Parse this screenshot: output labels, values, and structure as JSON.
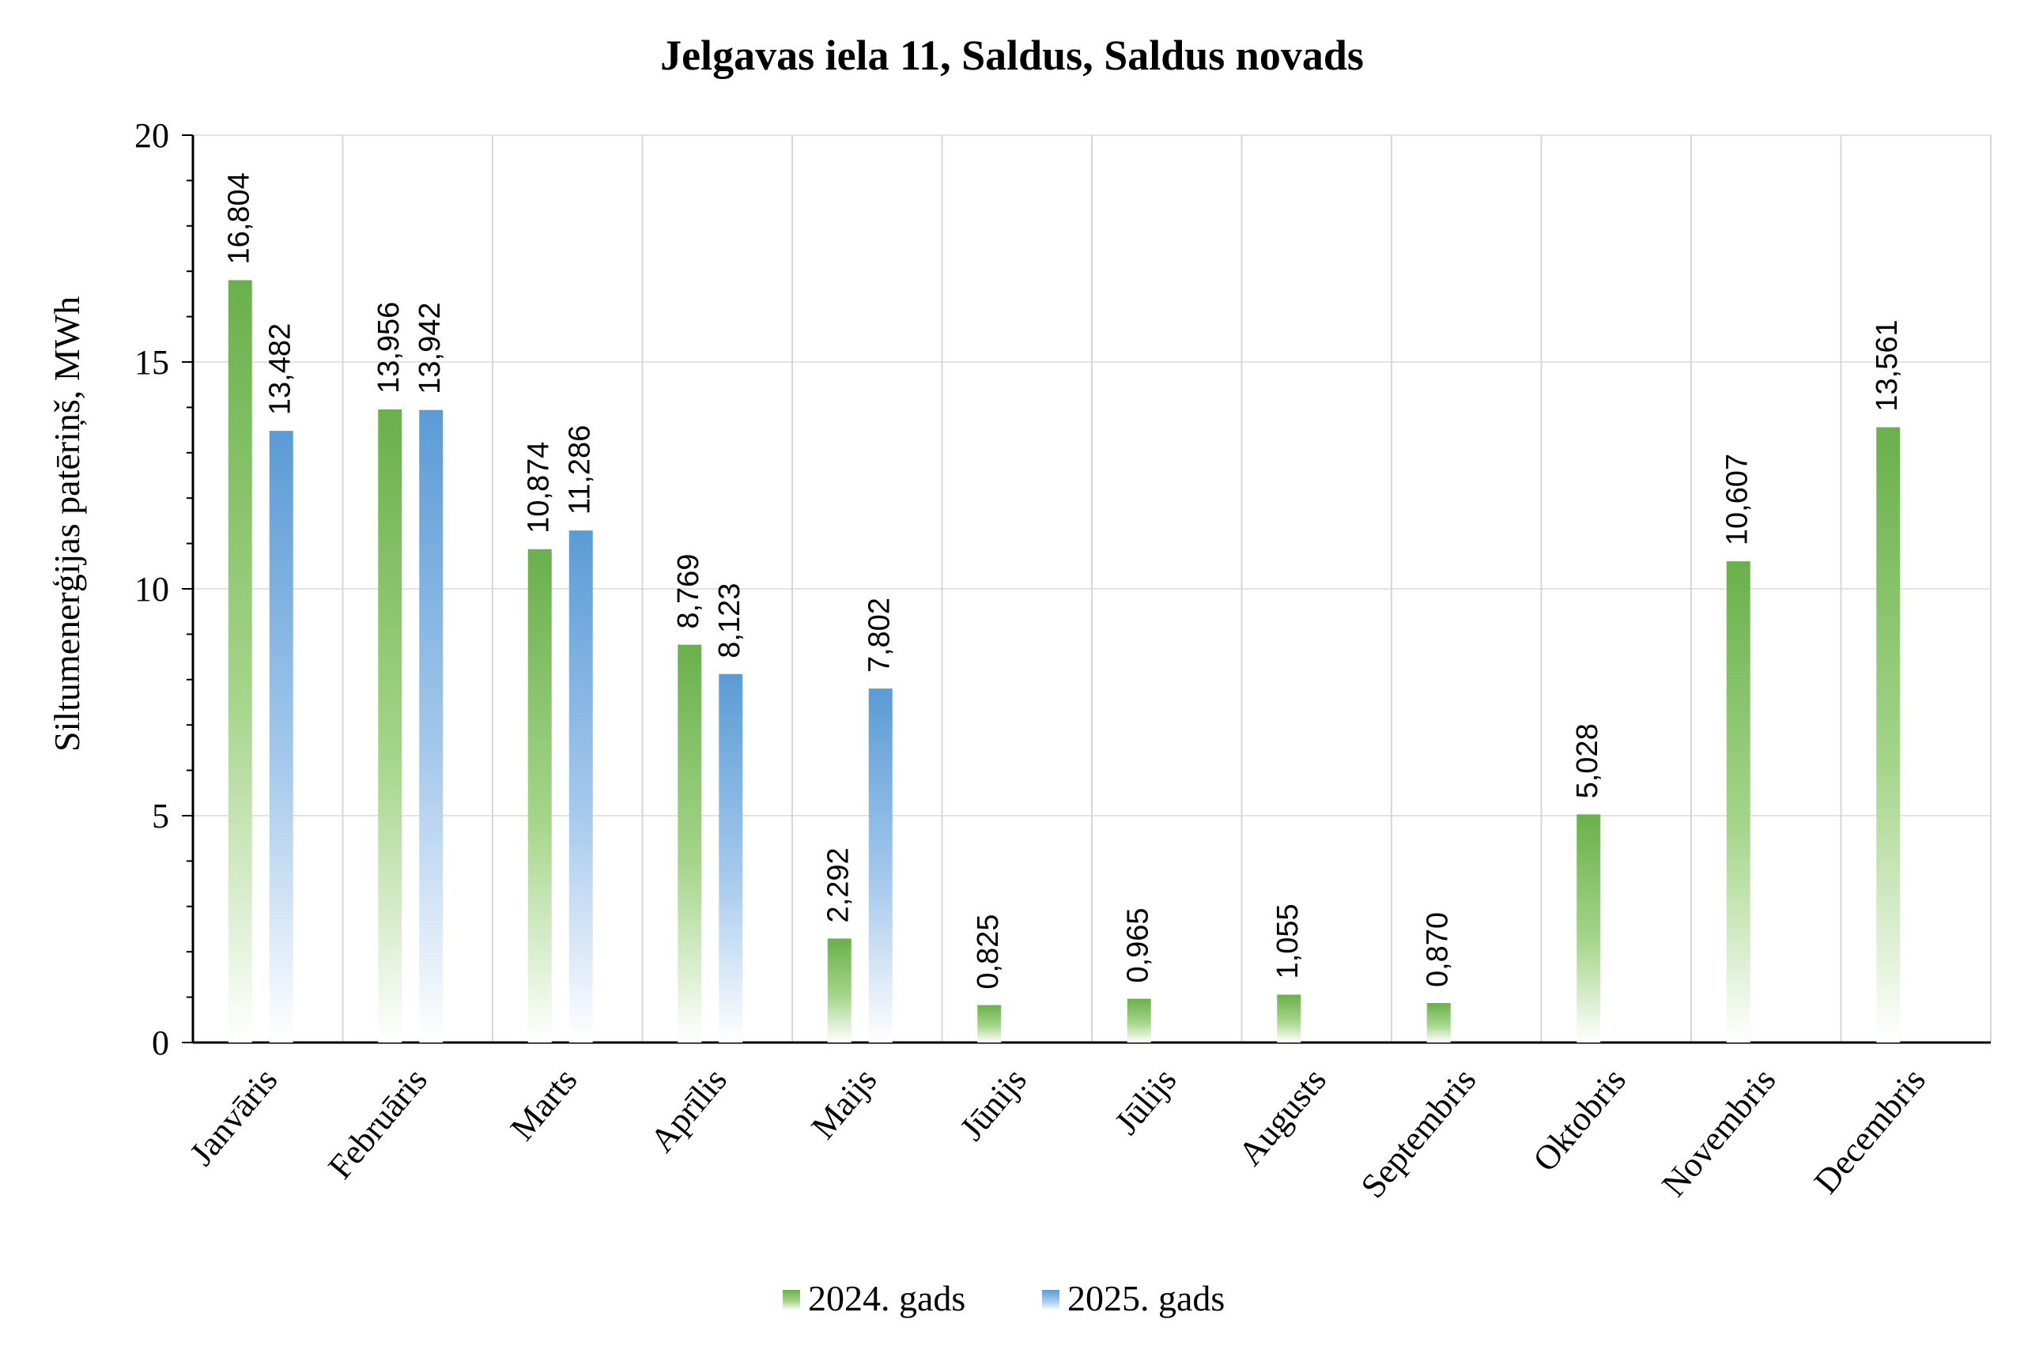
{
  "chart_data": {
    "type": "bar",
    "title": "Jelgavas iela 11, Saldus, Saldus novads",
    "ylabel": "Siltumenerģijas patēriņš, MWh",
    "xlabel": "",
    "ylim": [
      0,
      20
    ],
    "yticks": [
      0,
      5,
      10,
      15,
      20
    ],
    "grid": true,
    "legend_position": "bottom",
    "categories": [
      "Janvāris",
      "Februāris",
      "Marts",
      "Aprīlis",
      "Maijs",
      "Jūnijs",
      "Jūlijs",
      "Augusts",
      "Septembris",
      "Oktobris",
      "Novembris",
      "Decembris"
    ],
    "series": [
      {
        "name": "2024. gads",
        "color": "#6ab04c",
        "values": [
          16.804,
          13.956,
          10.874,
          8.769,
          2.292,
          0.825,
          0.965,
          1.055,
          0.87,
          5.028,
          10.607,
          13.561
        ],
        "labels": [
          "16,804",
          "13,956",
          "10,874",
          "8,769",
          "2,292",
          "0,825",
          "0,965",
          "1,055",
          "0,870",
          "5,028",
          "10,607",
          "13,561"
        ]
      },
      {
        "name": "2025. gads",
        "color": "#5b9bd5",
        "values": [
          13.482,
          13.942,
          11.286,
          8.123,
          7.802,
          null,
          null,
          null,
          null,
          null,
          null,
          null
        ],
        "labels": [
          "13,482",
          "13,942",
          "11,286",
          "8,123",
          "7,802",
          null,
          null,
          null,
          null,
          null,
          null,
          null
        ]
      }
    ]
  }
}
